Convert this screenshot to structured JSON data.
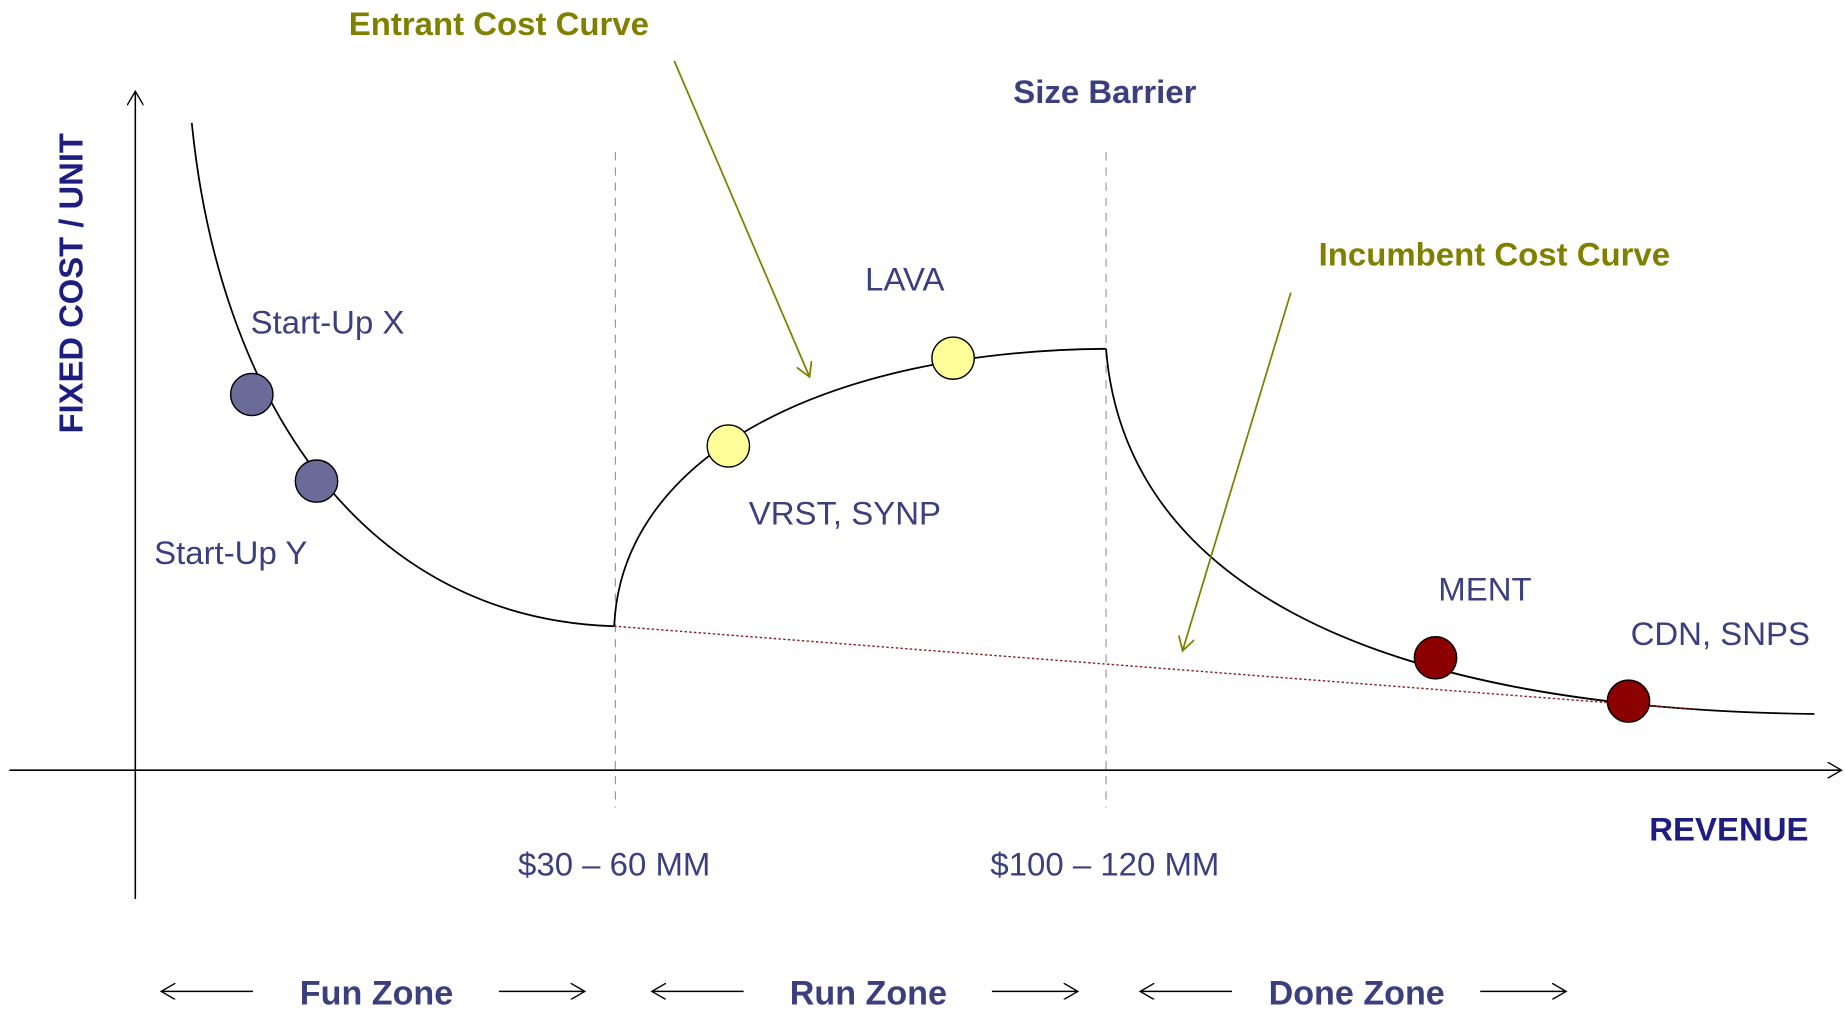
{
  "callouts": {
    "entrant_curve": "Entrant Cost Curve",
    "size_barrier": "Size Barrier",
    "incumbent_curve": "Incumbent Cost Curve"
  },
  "axes": {
    "y": "FIXED COST / UNIT",
    "x": "REVENUE"
  },
  "point_labels": [
    "Start-Up X",
    "Start-Up Y",
    "LAVA",
    "VRST, SYNP",
    "MENT",
    "CDN, SNPS"
  ],
  "thresholds": [
    "$30 – 60 MM",
    "$100 – 120 MM"
  ],
  "zones": [
    "Fun Zone",
    "Run Zone",
    "Done Zone"
  ]
}
